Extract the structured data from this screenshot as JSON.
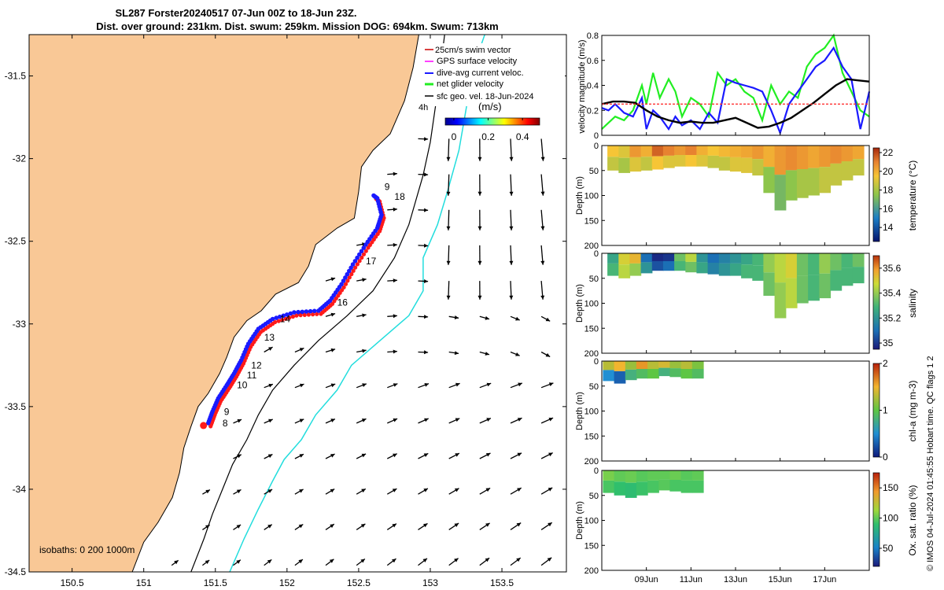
{
  "title_line1": "SL287 Forster20240517 07-Jun 00Z to 18-Jun 23Z.",
  "title_line2": "Dist. over ground: 231km. Dist. swum: 259km. Mission DOG: 694km. Swum: 713km",
  "side_caption": "© IMOS 04-Jul-2024 01:45:55 Hobart time. QC flags 1  2",
  "colors": {
    "land": "#f9c896",
    "glider_track_blue": "#1a1aff",
    "glider_track_red": "#ff1a1a",
    "isobath_cyan": "#22dddd",
    "net_velocity_green": "#22ee22",
    "dive_avg_blue": "#1a1aff",
    "surface_red": "#ff3333",
    "geo_black": "#000000"
  },
  "chart_data": [
    {
      "type": "map",
      "name": "track-map",
      "xlim": [
        150.2,
        153.95
      ],
      "ylim": [
        -34.5,
        -31.25
      ],
      "xticks": [
        "150.5",
        "151",
        "151.5",
        "152",
        "152.5",
        "153",
        "153.5"
      ],
      "xtick_values": [
        150.5,
        151,
        151.5,
        152,
        152.5,
        153,
        153.5
      ],
      "yticks": [
        "-31.5",
        "-32",
        "-32.5",
        "-33",
        "-33.5",
        "-34",
        "-34.5"
      ],
      "ytick_values": [
        -31.5,
        -32,
        -32.5,
        -33,
        -33.5,
        -34,
        -34.5
      ],
      "legend": {
        "placement": "top-right",
        "entries": [
          {
            "label": "25cm/s swim vector",
            "color": "#cc0000"
          },
          {
            "label": "GPS surface velocity",
            "color": "#ff00ff"
          },
          {
            "label": "dive-avg current veloc.",
            "color": "#1a1aff"
          },
          {
            "label": "net glider velocity",
            "color": "#22ee22"
          },
          {
            "label": "sfc geo. vel. 18-Jun-2024",
            "color": "#000000"
          }
        ],
        "scale_label": "4h"
      },
      "colorbar": {
        "title": "(m/s)",
        "ticks": [
          "0",
          "0.2",
          "0.4"
        ],
        "tick_values": [
          0,
          0.2,
          0.4
        ],
        "range": [
          -0.05,
          0.5
        ]
      },
      "isobaths_label": "isobaths: 0   200  1000m",
      "day_labels": [
        {
          "label": "8",
          "lon": 151.55,
          "lat": -33.62
        },
        {
          "label": "9",
          "lon": 151.56,
          "lat": -33.55
        },
        {
          "label": "10",
          "lon": 151.65,
          "lat": -33.39
        },
        {
          "label": "11",
          "lon": 151.72,
          "lat": -33.33
        },
        {
          "label": "12",
          "lon": 151.75,
          "lat": -33.27
        },
        {
          "label": "13",
          "lon": 151.84,
          "lat": -33.1
        },
        {
          "label": "14",
          "lon": 151.95,
          "lat": -32.99
        },
        {
          "label": "16",
          "lon": 152.35,
          "lat": -32.89
        },
        {
          "label": "17",
          "lon": 152.55,
          "lat": -32.64
        },
        {
          "label": "18",
          "lon": 152.75,
          "lat": -32.25
        },
        {
          "label": "9",
          "lon": 152.68,
          "lat": -32.19
        }
      ],
      "track": [
        [
          151.45,
          -33.6
        ],
        [
          151.48,
          -33.53
        ],
        [
          151.52,
          -33.45
        ],
        [
          151.58,
          -33.37
        ],
        [
          151.63,
          -33.3
        ],
        [
          151.68,
          -33.22
        ],
        [
          151.73,
          -33.12
        ],
        [
          151.8,
          -33.03
        ],
        [
          151.9,
          -32.97
        ],
        [
          152.05,
          -32.93
        ],
        [
          152.22,
          -32.92
        ],
        [
          152.3,
          -32.86
        ],
        [
          152.38,
          -32.76
        ],
        [
          152.46,
          -32.64
        ],
        [
          152.55,
          -32.52
        ],
        [
          152.63,
          -32.42
        ],
        [
          152.66,
          -32.34
        ],
        [
          152.63,
          -32.24
        ],
        [
          152.6,
          -32.22
        ]
      ],
      "coastline": [
        [
          152.92,
          -31.25
        ],
        [
          152.88,
          -31.45
        ],
        [
          152.82,
          -31.65
        ],
        [
          152.72,
          -31.85
        ],
        [
          152.6,
          -31.95
        ],
        [
          152.52,
          -32.05
        ],
        [
          152.5,
          -32.2
        ],
        [
          152.47,
          -32.36
        ],
        [
          152.35,
          -32.42
        ],
        [
          152.2,
          -32.52
        ],
        [
          152.15,
          -32.65
        ],
        [
          152.08,
          -32.75
        ],
        [
          151.92,
          -32.82
        ],
        [
          151.82,
          -32.92
        ],
        [
          151.72,
          -32.98
        ],
        [
          151.63,
          -33.08
        ],
        [
          151.58,
          -33.2
        ],
        [
          151.53,
          -33.3
        ],
        [
          151.45,
          -33.42
        ],
        [
          151.38,
          -33.5
        ],
        [
          151.33,
          -33.62
        ],
        [
          151.28,
          -33.75
        ],
        [
          151.25,
          -33.9
        ],
        [
          151.2,
          -34.05
        ],
        [
          151.1,
          -34.2
        ],
        [
          151.0,
          -34.32
        ],
        [
          150.92,
          -34.5
        ]
      ],
      "isobath_200": [
        [
          153.1,
          -31.25
        ],
        [
          153.05,
          -31.6
        ],
        [
          153.0,
          -31.9
        ],
        [
          152.95,
          -32.1
        ],
        [
          152.85,
          -32.4
        ],
        [
          152.75,
          -32.6
        ],
        [
          152.6,
          -32.8
        ],
        [
          152.42,
          -32.95
        ],
        [
          152.22,
          -33.1
        ],
        [
          152.05,
          -33.25
        ],
        [
          151.9,
          -33.4
        ],
        [
          151.8,
          -33.55
        ],
        [
          151.72,
          -33.7
        ],
        [
          151.62,
          -33.85
        ],
        [
          151.55,
          -34.0
        ],
        [
          151.48,
          -34.15
        ],
        [
          151.42,
          -34.3
        ],
        [
          151.33,
          -34.5
        ]
      ],
      "isobath_1000": [
        [
          153.38,
          -31.25
        ],
        [
          153.3,
          -31.45
        ],
        [
          153.25,
          -31.7
        ],
        [
          153.2,
          -31.95
        ],
        [
          153.12,
          -32.2
        ],
        [
          153.05,
          -32.4
        ],
        [
          152.95,
          -32.6
        ],
        [
          152.95,
          -32.8
        ],
        [
          152.85,
          -32.95
        ],
        [
          152.65,
          -33.1
        ],
        [
          152.45,
          -33.25
        ],
        [
          152.35,
          -33.4
        ],
        [
          152.2,
          -33.55
        ],
        [
          152.1,
          -33.7
        ],
        [
          151.98,
          -33.82
        ],
        [
          151.9,
          -33.95
        ],
        [
          151.8,
          -34.12
        ],
        [
          151.7,
          -34.3
        ],
        [
          151.6,
          -34.5
        ]
      ]
    },
    {
      "type": "line",
      "name": "velocity-magnitude",
      "ylabel": "velocity magnitude (m/s)",
      "xlim": [
        7,
        19
      ],
      "ylim": [
        0,
        0.8
      ],
      "yticks": [
        "0",
        "0.2",
        "0.4",
        "0.6",
        "0.8"
      ],
      "ytick_values": [
        0,
        0.2,
        0.4,
        0.6,
        0.8
      ],
      "series": [
        {
          "color": "#22ee22",
          "x": [
            7.0,
            7.3,
            7.6,
            8.0,
            8.4,
            8.8,
            9.0,
            9.3,
            9.6,
            10.0,
            10.3,
            10.6,
            11.0,
            11.4,
            11.8,
            12.2,
            12.6,
            13.0,
            13.4,
            13.8,
            14.2,
            14.6,
            15.0,
            15.4,
            15.8,
            16.2,
            16.6,
            17.0,
            17.4,
            17.8,
            18.2,
            18.6,
            19.0
          ],
          "y": [
            0.05,
            0.1,
            0.15,
            0.12,
            0.2,
            0.4,
            0.25,
            0.5,
            0.3,
            0.45,
            0.35,
            0.15,
            0.3,
            0.25,
            0.15,
            0.5,
            0.4,
            0.45,
            0.35,
            0.3,
            0.12,
            0.4,
            0.25,
            0.35,
            0.3,
            0.55,
            0.65,
            0.7,
            0.8,
            0.5,
            0.35,
            0.2,
            0.15
          ]
        },
        {
          "color": "#1a1aff",
          "x": [
            7.0,
            7.3,
            7.6,
            8.0,
            8.4,
            8.8,
            9.0,
            9.3,
            9.6,
            10.0,
            10.3,
            10.6,
            11.0,
            11.4,
            11.8,
            12.2,
            12.6,
            13.0,
            13.4,
            13.8,
            14.2,
            14.6,
            15.0,
            15.4,
            15.8,
            16.2,
            16.6,
            17.0,
            17.4,
            17.8,
            18.2,
            18.6,
            19.0
          ],
          "y": [
            0.22,
            0.2,
            0.25,
            0.18,
            0.15,
            0.3,
            0.05,
            0.2,
            0.15,
            0.05,
            0.15,
            0.08,
            0.12,
            0.05,
            0.18,
            0.1,
            0.45,
            0.42,
            0.4,
            0.38,
            0.35,
            0.2,
            0.02,
            0.25,
            0.35,
            0.45,
            0.55,
            0.6,
            0.7,
            0.55,
            0.45,
            0.05,
            0.35
          ]
        },
        {
          "color": "#000000",
          "x": [
            7.0,
            7.5,
            8.0,
            8.5,
            9.0,
            9.5,
            10.0,
            10.5,
            11.0,
            11.5,
            12.0,
            12.5,
            13.0,
            13.5,
            14.0,
            14.5,
            15.0,
            15.5,
            16.0,
            16.5,
            17.0,
            17.5,
            18.0,
            18.5,
            19.0
          ],
          "y": [
            0.25,
            0.27,
            0.27,
            0.26,
            0.2,
            0.15,
            0.12,
            0.1,
            0.11,
            0.1,
            0.1,
            0.12,
            0.14,
            0.1,
            0.06,
            0.07,
            0.1,
            0.14,
            0.2,
            0.26,
            0.33,
            0.4,
            0.45,
            0.44,
            0.43
          ]
        },
        {
          "color": "#ff3333",
          "dashed": true,
          "x": [
            7,
            19
          ],
          "y": [
            0.25,
            0.25
          ]
        }
      ]
    },
    {
      "type": "heatmap",
      "name": "temperature",
      "xlim": [
        7,
        19
      ],
      "ylabel": "Depth (m)",
      "ylim": [
        200,
        0
      ],
      "yticks": [
        "0",
        "50",
        "100",
        "150",
        "200"
      ],
      "colorbar_label": "temperature (°C)",
      "colorbar_ticks": [
        "14",
        "16",
        "18",
        "20",
        "22"
      ],
      "colorbar_range": [
        12.5,
        22.5
      ],
      "x": [
        7.5,
        8.0,
        8.5,
        9.0,
        9.5,
        10.0,
        10.5,
        11.0,
        11.5,
        12.0,
        12.5,
        13.0,
        13.5,
        14.0,
        14.5,
        15.0,
        15.5,
        16.0,
        16.5,
        17.0,
        17.5,
        18.0,
        18.5
      ],
      "max_depth": [
        50,
        55,
        52,
        50,
        48,
        45,
        42,
        42,
        42,
        45,
        50,
        52,
        55,
        60,
        95,
        130,
        110,
        105,
        100,
        95,
        80,
        70,
        60
      ],
      "surface_value": [
        19.5,
        19.0,
        20.5,
        20.0,
        21.5,
        21.0,
        20.5,
        21.0,
        20.0,
        19.5,
        19.8,
        20.0,
        20.2,
        20.5,
        20.0,
        20.5,
        20.8,
        20.5,
        20.2,
        20.5,
        20.8,
        20.5,
        20.2
      ],
      "deep_value": [
        18.5,
        18.0,
        19.0,
        18.5,
        19.5,
        19.0,
        19.0,
        19.5,
        19.0,
        18.5,
        18.5,
        19.0,
        19.0,
        18.5,
        17.5,
        17.0,
        17.5,
        18.0,
        18.0,
        18.5,
        18.5,
        18.5,
        18.5
      ]
    },
    {
      "type": "heatmap",
      "name": "salinity",
      "xlim": [
        7,
        19
      ],
      "ylabel": "Depth (m)",
      "ylim": [
        200,
        0
      ],
      "yticks": [
        "0",
        "50",
        "100",
        "150",
        "200"
      ],
      "colorbar_label": "salinity",
      "colorbar_ticks": [
        "35",
        "35.2",
        "35.4",
        "35.6"
      ],
      "colorbar_range": [
        34.95,
        35.7
      ],
      "x": [
        7.5,
        8.0,
        8.5,
        9.0,
        9.5,
        10.0,
        10.5,
        11.0,
        11.5,
        12.0,
        12.5,
        13.0,
        13.5,
        14.0,
        14.5,
        15.0,
        15.5,
        16.0,
        16.5,
        17.0,
        17.5,
        18.0,
        18.5
      ],
      "max_depth": [
        45,
        50,
        45,
        40,
        35,
        35,
        35,
        38,
        40,
        42,
        45,
        45,
        50,
        55,
        85,
        130,
        110,
        100,
        95,
        90,
        75,
        65,
        60
      ],
      "surface_value": [
        35.25,
        35.5,
        35.55,
        35.1,
        34.98,
        35.0,
        35.35,
        35.45,
        35.2,
        35.1,
        35.15,
        35.2,
        35.25,
        35.3,
        35.4,
        35.45,
        35.5,
        35.35,
        35.3,
        35.4,
        35.35,
        35.3,
        35.35
      ],
      "deep_value": [
        35.3,
        35.45,
        35.4,
        35.2,
        35.05,
        35.1,
        35.3,
        35.35,
        35.25,
        35.15,
        35.2,
        35.25,
        35.3,
        35.3,
        35.35,
        35.4,
        35.45,
        35.35,
        35.3,
        35.35,
        35.3,
        35.3,
        35.3
      ]
    },
    {
      "type": "heatmap",
      "name": "chlorophyll",
      "xlim": [
        7,
        19
      ],
      "ylabel": "Depth (m)",
      "ylim": [
        200,
        0
      ],
      "yticks": [
        "0",
        "50",
        "100",
        "150",
        "200"
      ],
      "colorbar_label": "chl-a (mg m-3)",
      "colorbar_ticks": [
        "0",
        "1",
        "2"
      ],
      "colorbar_range": [
        0,
        2
      ],
      "x": [
        7.3,
        7.8,
        8.3,
        8.8,
        9.3,
        9.8,
        10.3,
        10.8,
        11.3
      ],
      "max_depth": [
        40,
        45,
        38,
        35,
        35,
        30,
        32,
        35,
        35
      ],
      "surface_value": [
        1.3,
        1.5,
        1.2,
        1.6,
        1.3,
        1.4,
        1.2,
        1.3,
        1.1
      ],
      "deep_value": [
        0.5,
        0.3,
        0.8,
        0.9,
        1.0,
        0.8,
        0.9,
        1.0,
        0.9
      ]
    },
    {
      "type": "heatmap",
      "name": "oxygen",
      "xlim": [
        7,
        19
      ],
      "ylabel": "Depth (m)",
      "ylim": [
        200,
        0
      ],
      "yticks": [
        "0",
        "50",
        "100",
        "150",
        "200"
      ],
      "xticks": [
        "09Jun",
        "11Jun",
        "13Jun",
        "15Jun",
        "17Jun"
      ],
      "xtick_values": [
        9,
        11,
        13,
        15,
        17
      ],
      "colorbar_label": "Ox. sat. ratio (%)",
      "colorbar_ticks": [
        "50",
        "100",
        "150"
      ],
      "colorbar_range": [
        20,
        175
      ],
      "x": [
        7.3,
        7.8,
        8.3,
        8.8,
        9.3,
        9.8,
        10.3,
        10.8,
        11.3
      ],
      "max_depth": [
        45,
        50,
        55,
        50,
        45,
        40,
        42,
        45,
        45
      ],
      "surface_value": [
        105,
        100,
        102,
        98,
        100,
        100,
        102,
        98,
        100
      ],
      "deep_value": [
        95,
        90,
        88,
        92,
        95,
        98,
        95,
        95,
        95
      ]
    }
  ]
}
